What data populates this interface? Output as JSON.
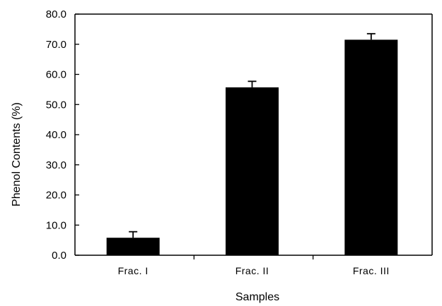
{
  "chart_data": {
    "type": "bar",
    "title": "",
    "xlabel": "Samples",
    "ylabel": "Phenol Contents (%)",
    "categories": [
      "Frac.  I",
      "Frac.  II",
      "Frac.  III"
    ],
    "values": [
      5.8,
      55.7,
      71.5
    ],
    "errors": [
      2.0,
      2.0,
      2.0
    ],
    "ylim": [
      0,
      80
    ],
    "yticks": [
      0,
      10,
      20,
      30,
      40,
      50,
      60,
      70,
      80
    ],
    "ytick_labels": [
      "0.0",
      "10.0",
      "20.0",
      "30.0",
      "40.0",
      "50.0",
      "60.0",
      "70.0",
      "80.0"
    ],
    "grid": false,
    "legend": "none",
    "colors": {
      "bar": "#000000",
      "axis": "#000000",
      "background": "#ffffff"
    }
  }
}
